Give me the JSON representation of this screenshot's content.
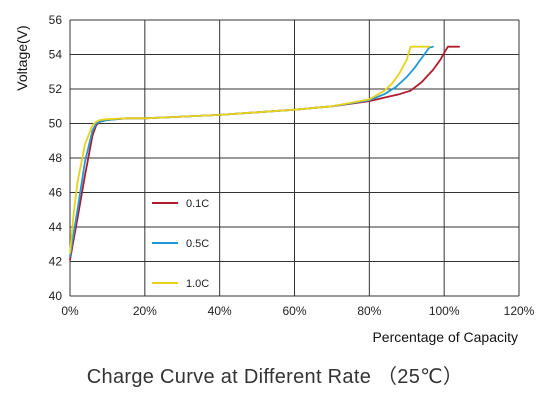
{
  "chart_data": {
    "type": "line",
    "title": "Charge Curve at Different Rate （25℃）",
    "xlabel": "Percentage of Capacity",
    "ylabel": "Voltage(V)",
    "xlim": [
      0,
      120
    ],
    "ylim": [
      40,
      56
    ],
    "xticks": [
      "0%",
      "20%",
      "40%",
      "60%",
      "80%",
      "100%",
      "120%"
    ],
    "yticks": [
      "40",
      "42",
      "44",
      "46",
      "48",
      "50",
      "52",
      "54",
      "56"
    ],
    "grid": true,
    "legend_position": "lower-left-inside",
    "series": [
      {
        "name": "0.1C",
        "color": "#b01c2e",
        "x": [
          0,
          2,
          4,
          6,
          7,
          8,
          10,
          15,
          20,
          30,
          40,
          50,
          60,
          70,
          80,
          85,
          88,
          91,
          94,
          97,
          99,
          100,
          101,
          104
        ],
        "y": [
          42.1,
          44.5,
          47,
          49.3,
          49.9,
          50.1,
          50.2,
          50.3,
          50.3,
          50.4,
          50.5,
          50.65,
          50.8,
          51.0,
          51.3,
          51.55,
          51.7,
          51.9,
          52.4,
          53.1,
          53.7,
          54.1,
          54.45,
          54.45
        ]
      },
      {
        "name": "0.5C",
        "color": "#1f9ad6",
        "x": [
          0,
          2,
          4,
          6,
          7,
          8,
          10,
          15,
          20,
          30,
          40,
          50,
          60,
          70,
          80,
          84,
          87,
          90,
          92,
          94,
          96,
          97
        ],
        "y": [
          42.3,
          45,
          47.8,
          49.6,
          50.0,
          50.1,
          50.2,
          50.3,
          50.3,
          50.4,
          50.5,
          50.65,
          50.8,
          51.0,
          51.35,
          51.7,
          52.1,
          52.7,
          53.2,
          53.8,
          54.4,
          54.45
        ]
      },
      {
        "name": "1.0C",
        "color": "#e8d21a",
        "x": [
          0,
          1,
          2,
          4,
          6,
          7,
          8,
          10,
          15,
          20,
          30,
          40,
          50,
          60,
          70,
          80,
          84,
          86,
          88,
          90,
          91,
          92,
          96
        ],
        "y": [
          42.5,
          44.8,
          46.6,
          48.8,
          49.9,
          50.1,
          50.2,
          50.25,
          50.3,
          50.3,
          50.4,
          50.5,
          50.65,
          50.8,
          51.0,
          51.4,
          51.9,
          52.3,
          52.9,
          53.7,
          54.45,
          54.45,
          54.45
        ]
      }
    ]
  }
}
